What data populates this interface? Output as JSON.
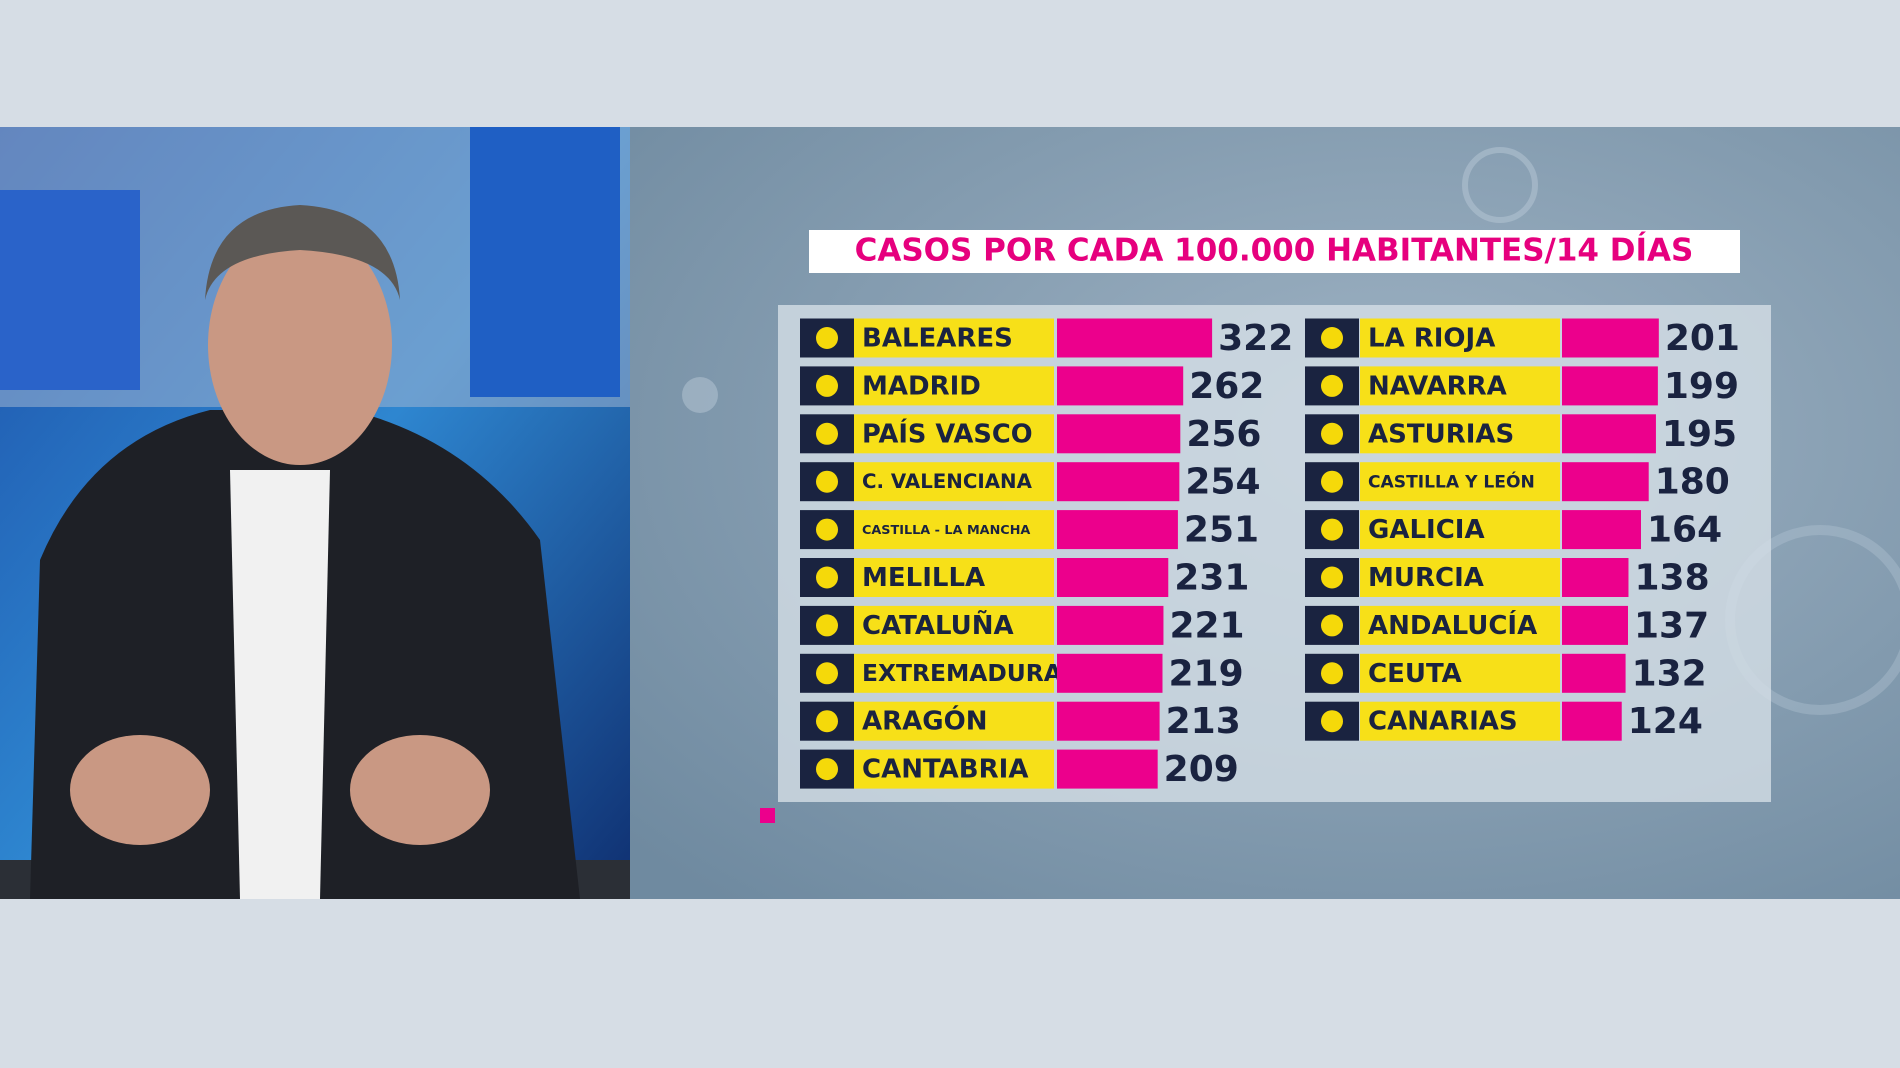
{
  "chart_data": {
    "type": "bar",
    "title": "CASOS POR CADA 100.000 HABITANTES/14 DÍAS",
    "categories": [
      "BALEARES",
      "MADRID",
      "PAÍS VASCO",
      "C. VALENCIANA",
      "CASTILLA - LA MANCHA",
      "MELILLA",
      "CATALUÑA",
      "EXTREMADURA",
      "ARAGÓN",
      "CANTABRIA",
      "LA RIOJA",
      "NAVARRA",
      "ASTURIAS",
      "CASTILLA Y LEÓN",
      "GALICIA",
      "MURCIA",
      "ANDALUCÍA",
      "CEUTA",
      "CANARIAS"
    ],
    "values": [
      322,
      262,
      256,
      254,
      251,
      231,
      221,
      219,
      213,
      209,
      201,
      199,
      195,
      180,
      164,
      138,
      137,
      132,
      124
    ],
    "color": "#ec008c"
  }
}
